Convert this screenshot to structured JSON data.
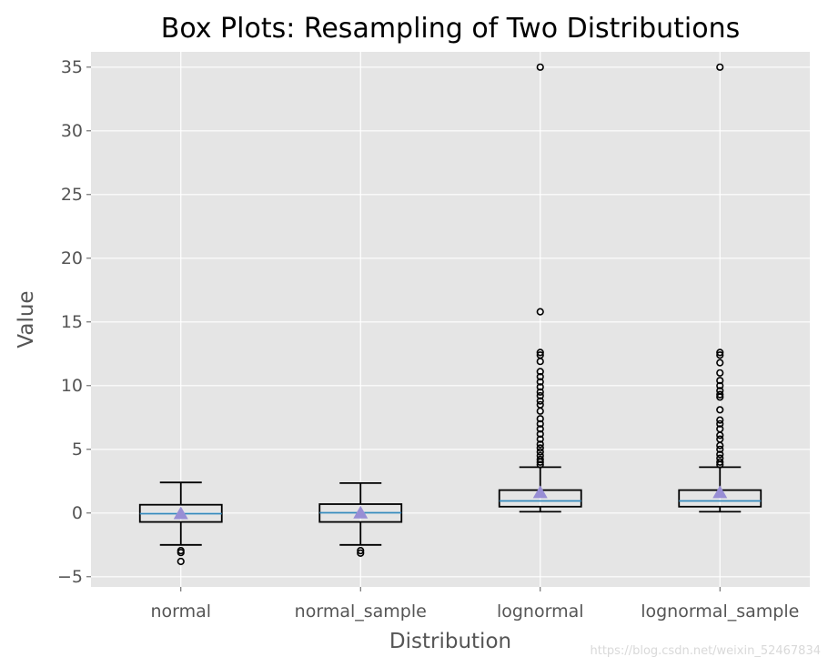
{
  "chart_data": {
    "type": "box",
    "title": "Box Plots: Resampling of Two Distributions",
    "xlabel": "Distribution",
    "ylabel": "Value",
    "ylim": [
      -5.8,
      36.2
    ],
    "yticks": [
      -5,
      0,
      5,
      10,
      15,
      20,
      25,
      30,
      35
    ],
    "grid": true,
    "categories": [
      "normal",
      "normal_sample",
      "lognormal",
      "lognormal_sample"
    ],
    "boxes": [
      {
        "whisker_low": -2.5,
        "q1": -0.7,
        "median": -0.05,
        "q3": 0.65,
        "whisker_high": 2.4,
        "mean": -0.05,
        "outliers": [
          -2.95,
          -3.1,
          -3.8
        ]
      },
      {
        "whisker_low": -2.5,
        "q1": -0.7,
        "median": 0.02,
        "q3": 0.7,
        "whisker_high": 2.35,
        "mean": 0.0,
        "outliers": [
          -2.95,
          -3.15
        ]
      },
      {
        "whisker_low": 0.1,
        "q1": 0.5,
        "median": 0.95,
        "q3": 1.8,
        "whisker_high": 3.6,
        "mean": 1.6,
        "outliers": [
          3.8,
          4.0,
          4.2,
          4.5,
          4.8,
          5.1,
          5.4,
          5.8,
          6.2,
          6.6,
          7.0,
          7.4,
          8.0,
          8.5,
          8.8,
          9.2,
          9.5,
          9.9,
          10.3,
          10.7,
          11.1,
          11.9,
          12.4,
          12.6,
          15.8,
          35.0
        ]
      },
      {
        "whisker_low": 0.1,
        "q1": 0.5,
        "median": 0.95,
        "q3": 1.8,
        "whisker_high": 3.6,
        "mean": 1.6,
        "outliers": [
          3.8,
          4.0,
          4.3,
          4.6,
          5.0,
          5.3,
          5.8,
          6.1,
          6.6,
          7.0,
          7.3,
          8.1,
          9.1,
          9.3,
          9.6,
          10.0,
          10.4,
          11.0,
          11.8,
          12.4,
          12.6,
          35.0
        ]
      }
    ],
    "colors": {
      "background": "#e5e5e5",
      "grid": "#ffffff",
      "box": "#000000",
      "median": "#348abd",
      "mean": "#988ed5",
      "text": "#555555",
      "title": "#000000"
    }
  },
  "watermark": "https://blog.csdn.net/weixin_52467834"
}
